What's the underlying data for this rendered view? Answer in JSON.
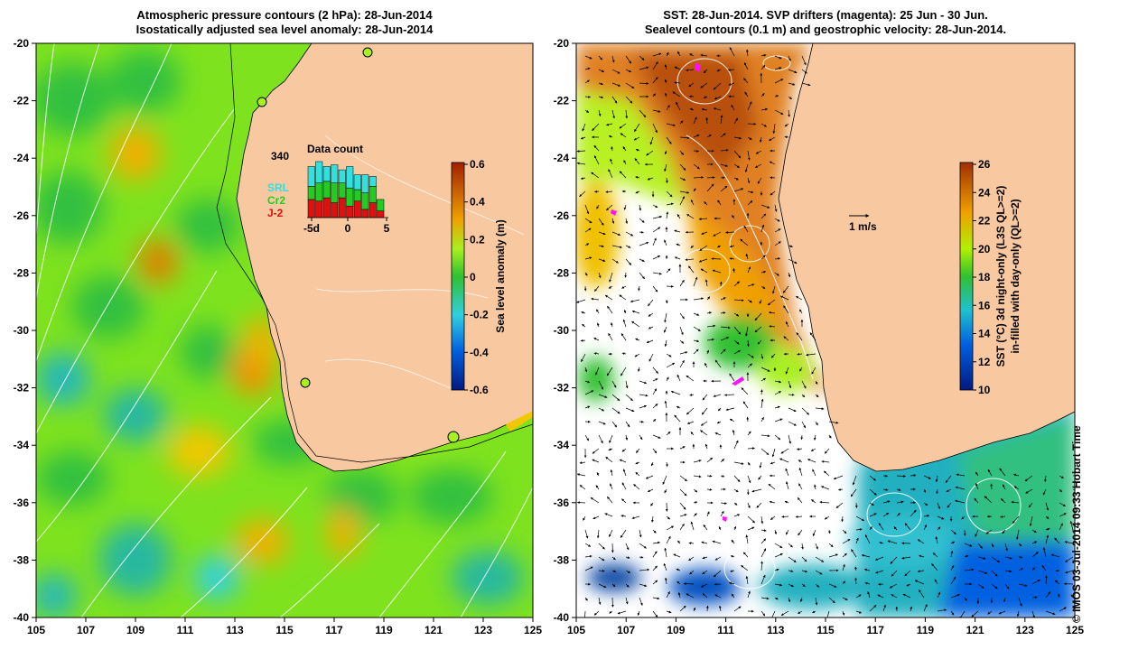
{
  "left_panel": {
    "title_line1": "Atmospheric pressure contours (2 hPa): 28-Jun-2014",
    "title_line2": "Isostatically adjusted sea level anomaly: 28-Jun-2014",
    "colorbar_label": "Sea level anomaly (m)",
    "colorbar_ticks": [
      "0.6",
      "0.4",
      "0.2",
      "0",
      "-0.2",
      "-0.4",
      "-0.6"
    ],
    "inset": {
      "title": "Data count",
      "ymax_label": "340",
      "x_ticks": [
        "-5d",
        "0",
        "5"
      ],
      "legend": [
        {
          "label": "SRL",
          "color": "#33e0e0"
        },
        {
          "label": "Cr2",
          "color": "#22cc22"
        },
        {
          "label": "J-2",
          "color": "#e01010"
        }
      ],
      "bars": [
        {
          "j2": 110,
          "cr2": 80,
          "srl": 120
        },
        {
          "j2": 100,
          "cr2": 110,
          "srl": 130
        },
        {
          "j2": 120,
          "cr2": 100,
          "srl": 90
        },
        {
          "j2": 90,
          "cr2": 120,
          "srl": 110
        },
        {
          "j2": 120,
          "cr2": 90,
          "srl": 80
        },
        {
          "j2": 70,
          "cr2": 110,
          "srl": 130
        },
        {
          "j2": 100,
          "cr2": 70,
          "srl": 90
        },
        {
          "j2": 50,
          "cr2": 100,
          "srl": 110
        },
        {
          "j2": 90,
          "cr2": 100,
          "srl": 60
        },
        {
          "j2": 40,
          "cr2": 70,
          "srl": 0
        }
      ]
    }
  },
  "right_panel": {
    "title_line1": "SST: 28-Jun-2014. SVP drifters (magenta): 25 Jun - 30 Jun.",
    "title_line2": "Sealevel contours (0.1 m) and geostrophic velocity: 28-Jun-2014.",
    "colorbar_label_line1": "SST (°C) 3d night-only (L3S QL>=2)",
    "colorbar_label_line2": "in-filled with day-only (QL>=2)",
    "colorbar_ticks": [
      "26",
      "24",
      "22",
      "20",
      "18",
      "16",
      "14",
      "12",
      "10"
    ],
    "velocity_scale_label": "1 m/s"
  },
  "axes": {
    "lat_ticks": [
      "-20",
      "-22",
      "-24",
      "-26",
      "-28",
      "-30",
      "-32",
      "-34",
      "-36",
      "-38",
      "-40"
    ],
    "lon_ticks": [
      "105",
      "107",
      "109",
      "111",
      "113",
      "115",
      "117",
      "119",
      "121",
      "123",
      "125"
    ]
  },
  "copyright": "© IMOS 03-Jul-2014 09:33 Hobart Time",
  "colors": {
    "land": "#f8c8a0",
    "sla_ramp": [
      "#001a80",
      "#0070e0",
      "#30d0e0",
      "#30c030",
      "#a8f020",
      "#f0a000",
      "#a02000"
    ],
    "sst_ramp": [
      "#001a80",
      "#0060e0",
      "#20c0d0",
      "#30c030",
      "#b0f000",
      "#f0a000",
      "#a03000"
    ]
  }
}
